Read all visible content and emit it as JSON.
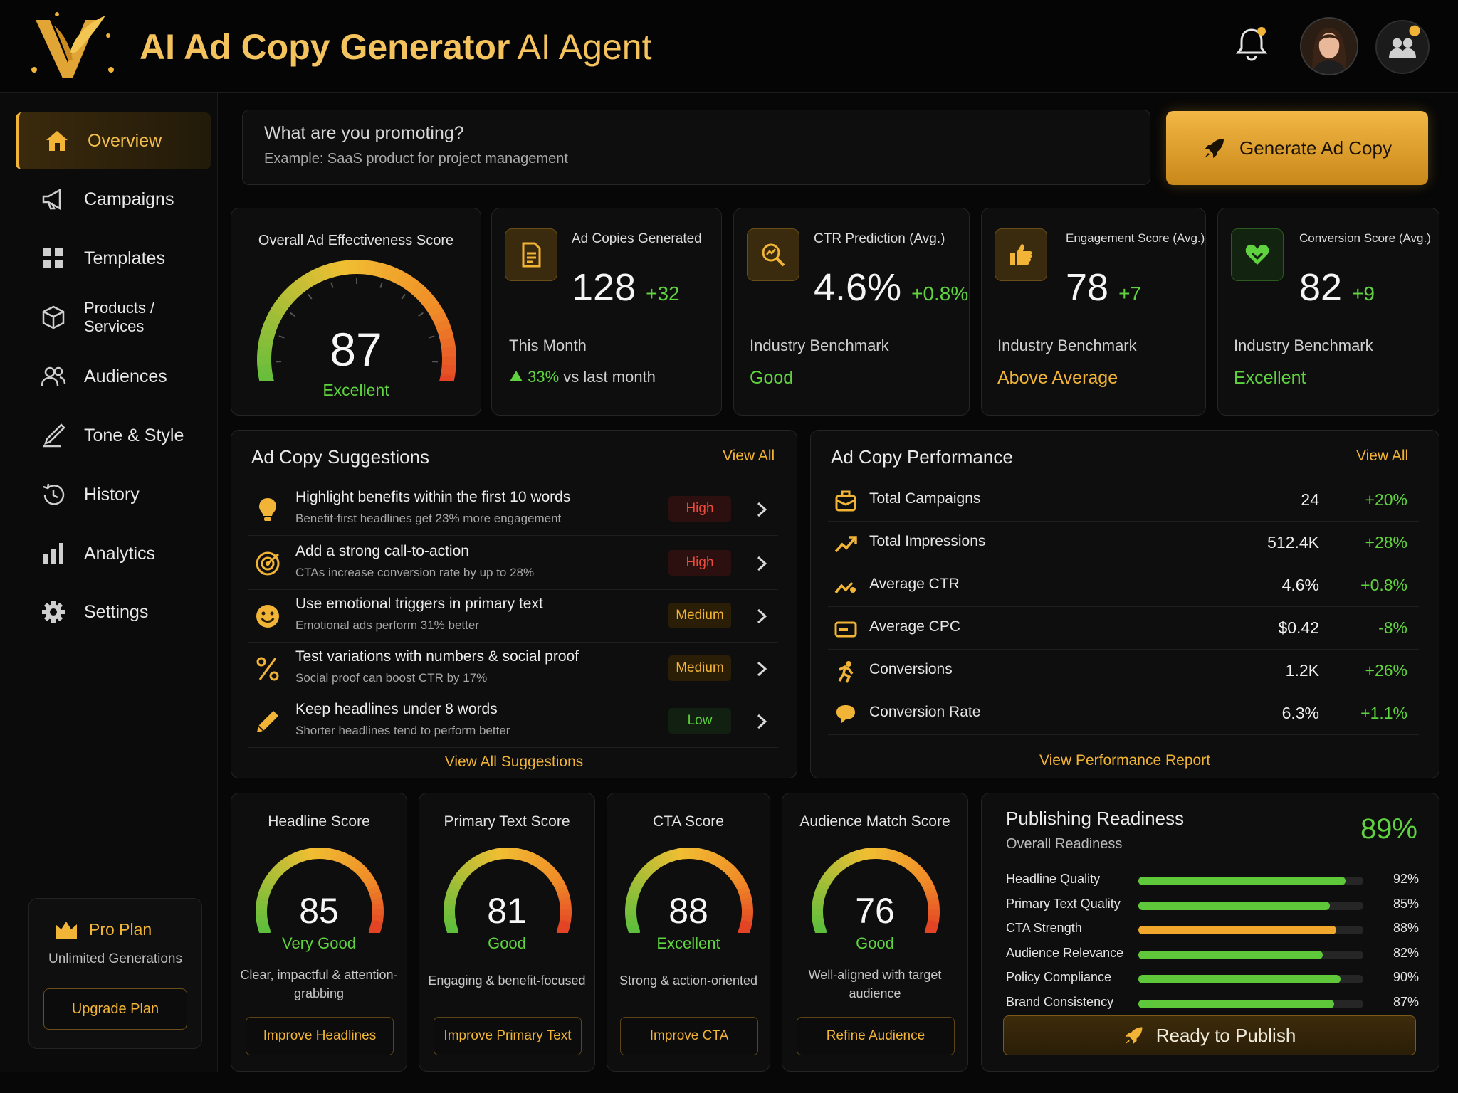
{
  "header": {
    "title": "AI Ad Copy Generator",
    "title_suffix": "AI Agent"
  },
  "sidebar": {
    "items": [
      {
        "label": "Overview",
        "icon": "home-icon",
        "active": true
      },
      {
        "label": "Campaigns",
        "icon": "megaphone-icon"
      },
      {
        "label": "Templates",
        "icon": "grid-icon"
      },
      {
        "label": "Products / Services",
        "icon": "box-icon"
      },
      {
        "label": "Audiences",
        "icon": "users-icon"
      },
      {
        "label": "Tone & Style",
        "icon": "pen-icon"
      },
      {
        "label": "History",
        "icon": "history-icon"
      },
      {
        "label": "Analytics",
        "icon": "bar-chart-icon"
      },
      {
        "label": "Settings",
        "icon": "gear-icon"
      }
    ],
    "plan": {
      "title": "Pro Plan",
      "subtitle": "Unlimited Generations",
      "button": "Upgrade Plan"
    }
  },
  "prompt": {
    "label": "What are you promoting?",
    "placeholder": "Example: SaaS product for project management",
    "button": "Generate Ad Copy"
  },
  "overall": {
    "title": "Overall Ad Effectiveness Score",
    "value": "87",
    "rating": "Excellent"
  },
  "stats": [
    {
      "title": "Ad Copies Generated",
      "value": "128",
      "delta": "+32",
      "sub": "This Month",
      "trend_pct": "33%",
      "trend_text": "vs last month"
    },
    {
      "title": "CTR Prediction (Avg.)",
      "value": "4.6%",
      "delta": "+0.8%",
      "sub": "Industry Benchmark",
      "rating": "Good"
    },
    {
      "title": "Engagement Score (Avg.)",
      "value": "78",
      "delta": "+7",
      "sub": "Industry Benchmark",
      "rating": "Above Average"
    },
    {
      "title": "Conversion Score (Avg.)",
      "value": "82",
      "delta": "+9",
      "sub": "Industry Benchmark",
      "rating": "Excellent"
    }
  ],
  "suggestions": {
    "title": "Ad Copy Suggestions",
    "view_all": "View All",
    "footer": "View All Suggestions",
    "items": [
      {
        "title": "Highlight benefits within the first 10 words",
        "desc": "Benefit-first headlines get 23% more engagement",
        "priority": "High",
        "icon": "lightbulb-icon"
      },
      {
        "title": "Add a strong call-to-action",
        "desc": "CTAs increase conversion rate by up to 28%",
        "priority": "High",
        "icon": "target-icon"
      },
      {
        "title": "Use emotional triggers in primary text",
        "desc": "Emotional ads perform 31% better",
        "priority": "Medium",
        "icon": "smile-icon"
      },
      {
        "title": "Test variations with numbers & social proof",
        "desc": "Social proof can boost CTR by 17%",
        "priority": "Medium",
        "icon": "percent-icon"
      },
      {
        "title": "Keep headlines under 8 words",
        "desc": "Shorter headlines tend to perform better",
        "priority": "Low",
        "icon": "pencil-icon"
      }
    ]
  },
  "performance": {
    "title": "Ad Copy Performance",
    "view_all": "View All",
    "footer": "View Performance Report",
    "rows": [
      {
        "label": "Total Campaigns",
        "value": "24",
        "delta": "+20%",
        "icon": "mailbox-icon"
      },
      {
        "label": "Total Impressions",
        "value": "512.4K",
        "delta": "+28%",
        "icon": "trend-up-icon"
      },
      {
        "label": "Average CTR",
        "value": "4.6%",
        "delta": "+0.8%",
        "icon": "click-trend-icon"
      },
      {
        "label": "Average CPC",
        "value": "$0.42",
        "delta": "-8%",
        "icon": "card-icon"
      },
      {
        "label": "Conversions",
        "value": "1.2K",
        "delta": "+26%",
        "icon": "runner-icon"
      },
      {
        "label": "Conversion Rate",
        "value": "6.3%",
        "delta": "+1.1%",
        "icon": "chat-icon"
      }
    ]
  },
  "scores": [
    {
      "title": "Headline Score",
      "value": "85",
      "rating": "Very Good",
      "desc": "Clear, impactful & attention-grabbing",
      "button": "Improve Headlines"
    },
    {
      "title": "Primary Text Score",
      "value": "81",
      "rating": "Good",
      "desc": "Engaging & benefit-focused",
      "button": "Improve Primary Text"
    },
    {
      "title": "CTA Score",
      "value": "88",
      "rating": "Excellent",
      "desc": "Strong & action-oriented",
      "button": "Improve CTA"
    },
    {
      "title": "Audience Match Score",
      "value": "76",
      "rating": "Good",
      "desc": "Well-aligned with target audience",
      "button": "Refine Audience"
    }
  ],
  "readiness": {
    "title": "Publishing Readiness",
    "subtitle": "Overall Readiness",
    "overall": "89%",
    "button": "Ready to Publish",
    "items": [
      {
        "label": "Headline Quality",
        "pct": "92%",
        "value": 92,
        "color": "#5fc83a"
      },
      {
        "label": "Primary Text Quality",
        "pct": "85%",
        "value": 85,
        "color": "#5fc83a"
      },
      {
        "label": "CTA Strength",
        "pct": "88%",
        "value": 88,
        "color": "#f1a72b"
      },
      {
        "label": "Audience Relevance",
        "pct": "82%",
        "value": 82,
        "color": "#5fc83a"
      },
      {
        "label": "Policy Compliance",
        "pct": "90%",
        "value": 90,
        "color": "#5fc83a"
      },
      {
        "label": "Brand Consistency",
        "pct": "87%",
        "value": 87,
        "color": "#5fc83a"
      }
    ]
  }
}
